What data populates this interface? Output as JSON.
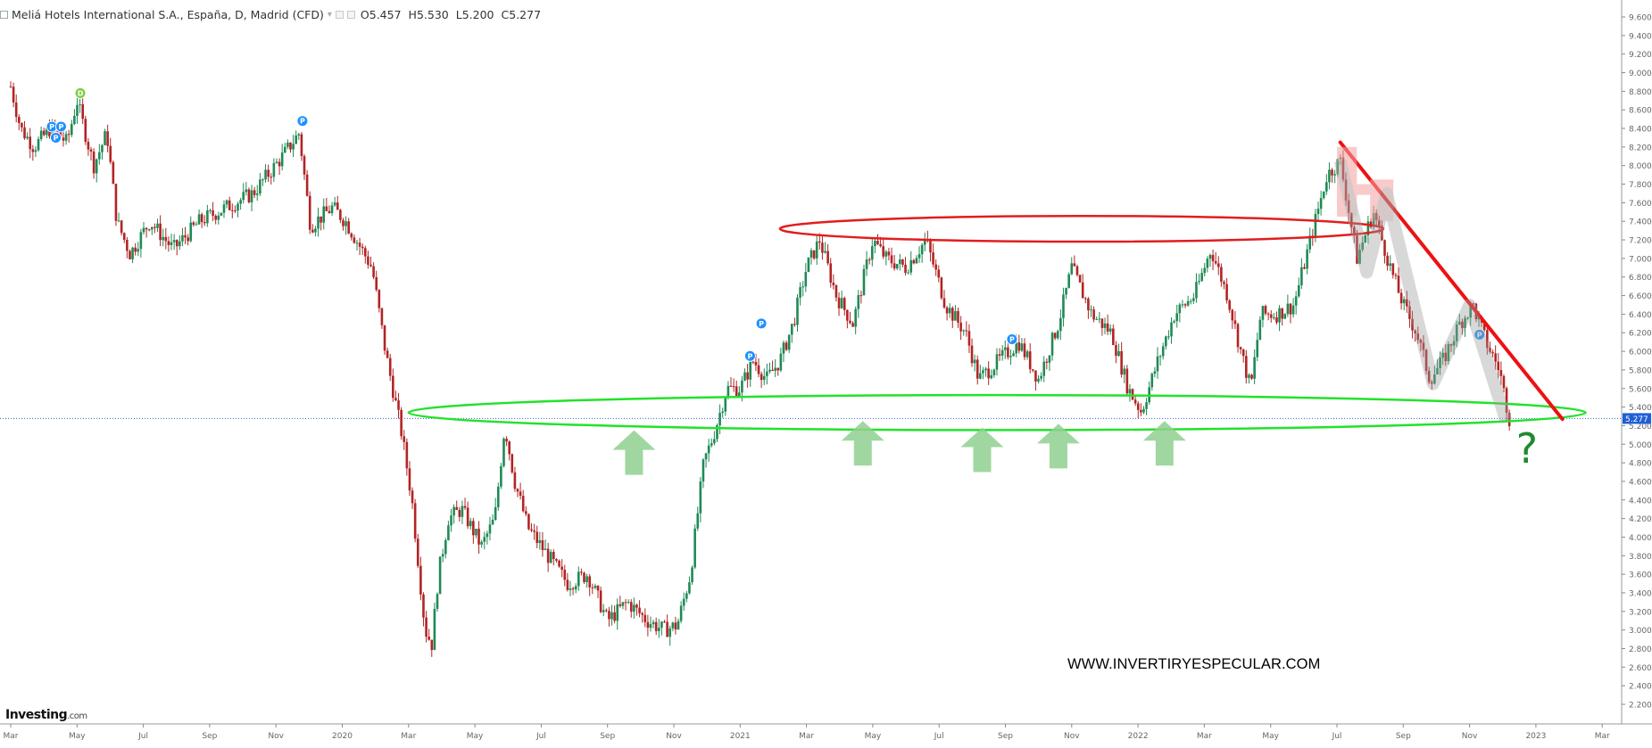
{
  "instrument": {
    "name": "Meliá Hotels International S.A., España, D, Madrid (CFD)",
    "open_label": "O",
    "open": "5.457",
    "high_label": "H",
    "high": "5.530",
    "low_label": "L",
    "low": "5.200",
    "close_label": "C",
    "close": "5.277"
  },
  "brand": {
    "name": "Investing",
    "suffix": ".com"
  },
  "watermark": "WWW.INVERTIRYESPECULAR.COM",
  "annotation_question": "?",
  "colors": {
    "up": "#1f8a55",
    "down": "#b22424",
    "axis": "#666666",
    "ellipse_top": "#e21d1d",
    "ellipse_bottom": "#22e22a",
    "trendline": "#ee1111",
    "arrows": "#8fd08f",
    "marker_blue": "#1e90ff",
    "marker_green": "#7ccf3c"
  },
  "chart_data": {
    "type": "candlestick",
    "title": "Meliá Hotels International S.A., España, D, Madrid (CFD)",
    "y_range": [
      2.2,
      9.6
    ],
    "y_ticks": [
      "9.600",
      "9.400",
      "9.200",
      "9.000",
      "8.800",
      "8.600",
      "8.400",
      "8.200",
      "8.000",
      "7.800",
      "7.600",
      "7.400",
      "7.200",
      "7.000",
      "6.800",
      "6.600",
      "6.400",
      "6.200",
      "6.000",
      "5.800",
      "5.600",
      "5.400",
      "5.200",
      "5.000",
      "4.800",
      "4.600",
      "4.400",
      "4.200",
      "4.000",
      "3.800",
      "3.600",
      "3.400",
      "3.200",
      "3.000",
      "2.800",
      "2.600",
      "2.400",
      "2.200"
    ],
    "x_ticks": [
      "Mar",
      "May",
      "Jul",
      "Sep",
      "Nov",
      "2020",
      "Mar",
      "May",
      "Jul",
      "Sep",
      "Nov",
      "2021",
      "Mar",
      "May",
      "Jul",
      "Sep",
      "Nov",
      "2022",
      "Mar",
      "May",
      "Jul",
      "Sep",
      "Nov",
      "2023",
      "Mar"
    ],
    "last_price": 5.277,
    "price_path": [
      {
        "x": 0.0,
        "y": 8.85
      },
      {
        "x": 0.15,
        "y": 8.4
      },
      {
        "x": 0.35,
        "y": 8.2
      },
      {
        "x": 0.6,
        "y": 8.4
      },
      {
        "x": 0.85,
        "y": 8.25
      },
      {
        "x": 1.0,
        "y": 8.7
      },
      {
        "x": 1.25,
        "y": 8.0
      },
      {
        "x": 1.45,
        "y": 8.35
      },
      {
        "x": 1.6,
        "y": 7.4
      },
      {
        "x": 1.8,
        "y": 7.05
      },
      {
        "x": 2.1,
        "y": 7.4
      },
      {
        "x": 2.45,
        "y": 7.1
      },
      {
        "x": 2.85,
        "y": 7.4
      },
      {
        "x": 3.25,
        "y": 7.55
      },
      {
        "x": 3.65,
        "y": 7.7
      },
      {
        "x": 4.1,
        "y": 8.1
      },
      {
        "x": 4.35,
        "y": 8.35
      },
      {
        "x": 4.52,
        "y": 7.35
      },
      {
        "x": 4.85,
        "y": 7.55
      },
      {
        "x": 5.05,
        "y": 7.4
      },
      {
        "x": 5.45,
        "y": 6.9
      },
      {
        "x": 5.65,
        "y": 6.0
      },
      {
        "x": 5.9,
        "y": 5.1
      },
      {
        "x": 6.05,
        "y": 4.4
      },
      {
        "x": 6.25,
        "y": 3.0
      },
      {
        "x": 6.35,
        "y": 2.85
      },
      {
        "x": 6.45,
        "y": 3.6
      },
      {
        "x": 6.6,
        "y": 4.2
      },
      {
        "x": 6.8,
        "y": 4.3
      },
      {
        "x": 7.1,
        "y": 3.9
      },
      {
        "x": 7.3,
        "y": 4.2
      },
      {
        "x": 7.45,
        "y": 5.2
      },
      {
        "x": 7.6,
        "y": 4.6
      },
      {
        "x": 7.8,
        "y": 4.1
      },
      {
        "x": 8.1,
        "y": 3.8
      },
      {
        "x": 8.4,
        "y": 3.5
      },
      {
        "x": 8.7,
        "y": 3.6
      },
      {
        "x": 9.0,
        "y": 3.1
      },
      {
        "x": 9.3,
        "y": 3.3
      },
      {
        "x": 9.6,
        "y": 3.1
      },
      {
        "x": 9.85,
        "y": 3.0
      },
      {
        "x": 10.05,
        "y": 3.05
      },
      {
        "x": 10.25,
        "y": 3.6
      },
      {
        "x": 10.45,
        "y": 4.8
      },
      {
        "x": 10.6,
        "y": 5.1
      },
      {
        "x": 10.8,
        "y": 5.6
      },
      {
        "x": 11.0,
        "y": 5.6
      },
      {
        "x": 11.2,
        "y": 5.9
      },
      {
        "x": 11.4,
        "y": 5.7
      },
      {
        "x": 11.6,
        "y": 5.9
      },
      {
        "x": 11.8,
        "y": 6.3
      },
      {
        "x": 12.0,
        "y": 6.9
      },
      {
        "x": 12.2,
        "y": 7.2
      },
      {
        "x": 12.45,
        "y": 6.6
      },
      {
        "x": 12.7,
        "y": 6.3
      },
      {
        "x": 13.0,
        "y": 7.2
      },
      {
        "x": 13.2,
        "y": 7.0
      },
      {
        "x": 13.5,
        "y": 6.9
      },
      {
        "x": 13.8,
        "y": 7.2
      },
      {
        "x": 14.1,
        "y": 6.5
      },
      {
        "x": 14.4,
        "y": 6.2
      },
      {
        "x": 14.6,
        "y": 5.7
      },
      {
        "x": 14.9,
        "y": 5.9
      },
      {
        "x": 15.2,
        "y": 6.1
      },
      {
        "x": 15.5,
        "y": 5.7
      },
      {
        "x": 15.8,
        "y": 6.3
      },
      {
        "x": 16.0,
        "y": 6.9
      },
      {
        "x": 16.3,
        "y": 6.4
      },
      {
        "x": 16.6,
        "y": 6.2
      },
      {
        "x": 16.85,
        "y": 5.6
      },
      {
        "x": 17.05,
        "y": 5.35
      },
      {
        "x": 17.3,
        "y": 5.9
      },
      {
        "x": 17.55,
        "y": 6.4
      },
      {
        "x": 17.85,
        "y": 6.6
      },
      {
        "x": 18.1,
        "y": 7.1
      },
      {
        "x": 18.35,
        "y": 6.6
      },
      {
        "x": 18.55,
        "y": 6.0
      },
      {
        "x": 18.7,
        "y": 5.6
      },
      {
        "x": 18.85,
        "y": 6.4
      },
      {
        "x": 19.1,
        "y": 6.4
      },
      {
        "x": 19.35,
        "y": 6.5
      },
      {
        "x": 19.6,
        "y": 7.2
      },
      {
        "x": 19.85,
        "y": 7.9
      },
      {
        "x": 20.05,
        "y": 8.05
      },
      {
        "x": 20.3,
        "y": 7.0
      },
      {
        "x": 20.55,
        "y": 7.5
      },
      {
        "x": 20.85,
        "y": 6.8
      },
      {
        "x": 21.0,
        "y": 6.5
      },
      {
        "x": 21.2,
        "y": 6.2
      },
      {
        "x": 21.4,
        "y": 5.7
      },
      {
        "x": 21.6,
        "y": 5.9
      },
      {
        "x": 21.85,
        "y": 6.3
      },
      {
        "x": 22.05,
        "y": 6.5
      },
      {
        "x": 22.25,
        "y": 6.1
      },
      {
        "x": 22.45,
        "y": 5.8
      },
      {
        "x": 22.6,
        "y": 5.277
      }
    ],
    "annotations": {
      "resistance_band": [
        7.2,
        7.4
      ],
      "support_band": [
        5.2,
        5.5
      ],
      "question_mark": "?"
    }
  }
}
